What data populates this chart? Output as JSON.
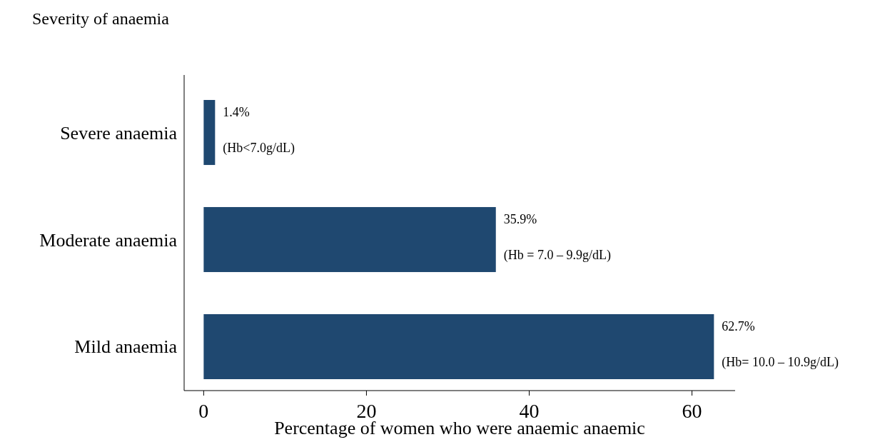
{
  "chart_data": {
    "type": "bar",
    "orientation": "horizontal",
    "title": "Severity of anaemia",
    "xlabel": "Percentage of women who were anaemic anaemic",
    "categories": [
      "Severe anaemia",
      "Moderate anaemia",
      "Mild anaemia"
    ],
    "values": [
      1.4,
      35.9,
      62.7
    ],
    "color": "#1f4870",
    "value_labels": [
      "1.4%",
      "35.9%",
      "62.7%"
    ],
    "annotations": [
      {
        "text": "(Hb<7.0g/dL)",
        "x": 1.4,
        "y": "Severe anaemia"
      },
      {
        "text": "(Hb = 7.0 – 9.9g/dL)",
        "x": 35.9,
        "y": "Moderate anaemia"
      },
      {
        "text": "(Hb= 10.0 – 10.9g/dL)",
        "x": 62.7,
        "y": "Mild anaemia"
      }
    ],
    "xlim": [
      -2.4,
      65.3
    ],
    "xticks": [
      0,
      20,
      40,
      60
    ],
    "grid": false
  }
}
